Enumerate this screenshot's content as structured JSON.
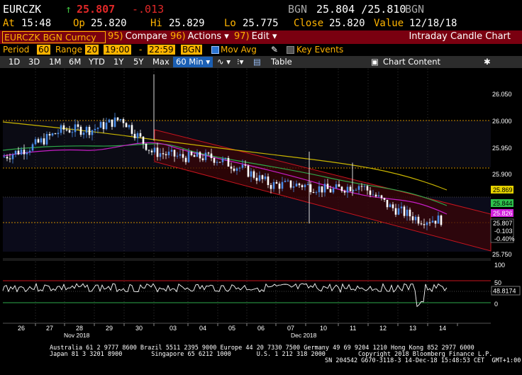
{
  "quote": {
    "ticker": "EURCZK",
    "arrow": "↑",
    "last": "25.807",
    "change": "-.013",
    "source": "BGN",
    "bid_ask": "25.804 /25.810",
    "source2": "BGN",
    "at_label": "At",
    "at": "15:48",
    "op_label": "Op",
    "op": "25.820",
    "hi_label": "Hi",
    "hi": "25.829",
    "lo_label": "Lo",
    "lo": "25.775",
    "close_label": "Close",
    "close": "25.820",
    "value_label": "Value",
    "value": "12/18/18"
  },
  "menubar": {
    "security": "EURCZK BGN Curncy",
    "compare_num": "95)",
    "compare": "Compare",
    "actions_num": "96)",
    "actions": "Actions",
    "edit_num": "97)",
    "edit": "Edit",
    "title": "Intraday Candle Chart"
  },
  "settings": {
    "period_label": "Period",
    "period": "60",
    "range_label": "Range",
    "range": "20",
    "time_from": "19:00",
    "dash": "-",
    "time_to": "22:59",
    "source": "BGN",
    "mov_avg": "Mov Avg",
    "key_events": "Key Events"
  },
  "toolbar": {
    "ranges": [
      "1D",
      "3D",
      "1M",
      "6M",
      "YTD",
      "1Y",
      "5Y",
      "Max"
    ],
    "interval": "60 Min",
    "table": "Table",
    "chart_content": "Chart Content"
  },
  "price_axis": {
    "ticks": [
      "26.050",
      "26.000",
      "25.950",
      "25.900",
      "25.750"
    ],
    "labels": [
      {
        "text": "25.869",
        "bg": "#e6d200"
      },
      {
        "text": "25.844",
        "bg": "#2ec24c"
      },
      {
        "text": "25.826",
        "bg": "#d21edc"
      }
    ],
    "last_block": [
      "25.807",
      "-0.103",
      "-0.40%"
    ]
  },
  "osc_axis": {
    "ticks": [
      "100",
      "50",
      "0"
    ],
    "value": "48.8174"
  },
  "dates": {
    "days": [
      "26",
      "27",
      "28",
      "29",
      "30",
      "03",
      "04",
      "05",
      "06",
      "07",
      "10",
      "11",
      "12",
      "13",
      "14"
    ],
    "months": [
      "Nov 2018",
      "Dec 2018"
    ]
  },
  "chart_data": {
    "type": "candlestick",
    "series": [
      {
        "name": "EURCZK",
        "x_dates": [
          "2018-11-26",
          "2018-11-27",
          "2018-11-28",
          "2018-11-29",
          "2018-11-30",
          "2018-12-03",
          "2018-12-04",
          "2018-12-05",
          "2018-12-06",
          "2018-12-07",
          "2018-12-10",
          "2018-12-11",
          "2018-12-12",
          "2018-12-13",
          "2018-12-14"
        ],
        "close": [
          25.92,
          25.94,
          25.97,
          25.97,
          25.99,
          25.93,
          25.92,
          25.92,
          25.9,
          25.87,
          25.87,
          25.86,
          25.87,
          25.83,
          25.807
        ]
      }
    ],
    "ylim": [
      25.74,
      26.08
    ],
    "oscillator": {
      "ylim": [
        0,
        100
      ],
      "last": 48.8174
    }
  },
  "footer": {
    "line1": "Australia 61 2 9777 8600 Brazil 5511 2395 9000 Europe 44 20 7330 7500 Germany 49 69 9204 1210 Hong Kong 852 2977 6000",
    "line2": "Japan 81 3 3201 8900        Singapore 65 6212 1000       U.S. 1 212 318 2000         Copyright 2018 Bloomberg Finance L.P.",
    "line3": "SN 204542 G670-3118-3 14-Dec-18 15:48:53 CET  GMT+1:00"
  }
}
